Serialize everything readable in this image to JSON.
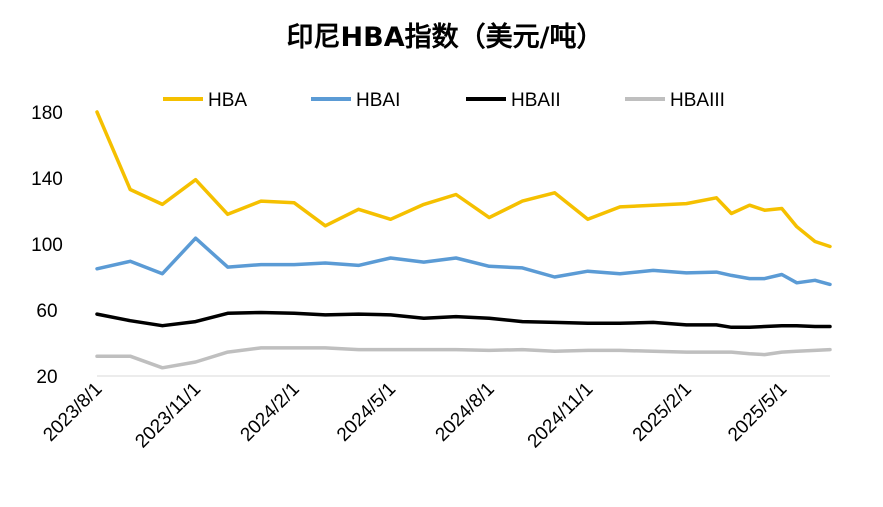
{
  "chart_data": {
    "type": "line",
    "title": "印尼HBA指数（美元/吨）",
    "xlabel": "",
    "ylabel": "",
    "ylim": [
      20,
      180
    ],
    "yticks": [
      20,
      60,
      100,
      140,
      180
    ],
    "xtick_labels": [
      "2023/8/1",
      "2023/11/1",
      "2024/2/1",
      "2024/5/1",
      "2024/8/1",
      "2024/11/1",
      "2025/2/1",
      "2025/5/1"
    ],
    "grid": false,
    "legend_position": "top",
    "x": [
      "2023-08-01",
      "2023-09-01",
      "2023-10-01",
      "2023-11-01",
      "2023-12-01",
      "2024-01-01",
      "2024-02-01",
      "2024-03-01",
      "2024-04-01",
      "2024-05-01",
      "2024-06-01",
      "2024-07-01",
      "2024-08-01",
      "2024-09-01",
      "2024-10-01",
      "2024-11-01",
      "2024-12-01",
      "2025-01-01",
      "2025-02-01",
      "2025-03-01",
      "2025-03-15",
      "2025-04-01",
      "2025-04-15",
      "2025-05-01",
      "2025-05-15",
      "2025-06-01",
      "2025-06-15"
    ],
    "series": [
      {
        "name": "HBA",
        "color": "#F5C000",
        "values": [
          180,
          133,
          124,
          139,
          118,
          126,
          125,
          111,
          121,
          115,
          124,
          130,
          116,
          126,
          131,
          115,
          122.5,
          123.5,
          124.5,
          128,
          118.5,
          123.5,
          120.5,
          121.5,
          110.5,
          101.5,
          98.5
        ]
      },
      {
        "name": "HBAI",
        "color": "#5B9BD5",
        "values": [
          85,
          89.5,
          82,
          103.5,
          86,
          87.5,
          87.5,
          88.5,
          87,
          91.5,
          89,
          91.5,
          86.5,
          85.5,
          80,
          83.5,
          82,
          84,
          82.5,
          83,
          81,
          79,
          79,
          81.5,
          76.5,
          78,
          75.5
        ]
      },
      {
        "name": "HBAII",
        "color": "#000000",
        "values": [
          57.5,
          53.5,
          50.5,
          53,
          58,
          58.5,
          58,
          57,
          57.5,
          57,
          55,
          56,
          55,
          53,
          52.5,
          52,
          52,
          52.5,
          51,
          51,
          49.5,
          49.5,
          50,
          50.5,
          50.5,
          50,
          50
        ]
      },
      {
        "name": "HBAIII",
        "color": "#BFBFBF",
        "values": [
          32,
          32,
          25,
          28.5,
          34.5,
          37,
          37,
          37,
          36,
          36,
          36,
          36,
          35.5,
          36,
          35,
          35.5,
          35.5,
          35,
          34.5,
          34.5,
          34.5,
          33.5,
          33,
          34.5,
          35,
          35.5,
          36
        ]
      }
    ]
  }
}
